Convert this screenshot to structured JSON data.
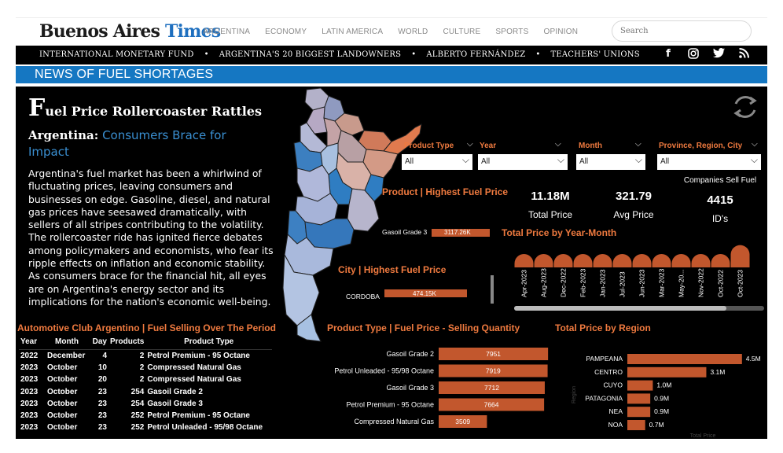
{
  "site": {
    "logo_part1": "Buenos Aires",
    "logo_part2": "Times",
    "nav": [
      "ARGENTINA",
      "ECONOMY",
      "LATIN AMERICA",
      "WORLD",
      "CULTURE",
      "SPORTS",
      "OPINION"
    ],
    "search_placeholder": "Search",
    "topics": [
      "INTERNATIONAL MONETARY FUND",
      "ARGENTINA'S 20 BIGGEST LANDOWNERS",
      "ALBERTO FERNÁNDEZ",
      "TEACHERS' UNIONS"
    ],
    "social_icons": [
      "facebook-icon",
      "instagram-icon",
      "twitter-icon",
      "rss-icon"
    ],
    "section_title": "NEWS OF FUEL SHORTAGES"
  },
  "article": {
    "title_cap": "F",
    "title_rest": "uel Price Rollercoaster Rattles",
    "subtitle_lead": "Argentina:",
    "subtitle_rest": "Consumers Brace for Impact",
    "body": "Argentina's fuel market has been a whirlwind of fluctuating prices, leaving consumers and businesses on edge. Gasoline, diesel, and natural gas prices have seesawed dramatically, with sellers of all stripes contributing to the volatility. The rollercoaster ride has ignited fierce debates among policymakers and economists, who fear its ripple effects on inflation and economic stability. As consumers brace for the financial hit, all eyes are on Argentina's energy sector and its implications for the nation's economic well-being."
  },
  "table": {
    "title": "Automotive Club Argentino | Fuel Selling Over The Period",
    "headers": [
      "Year",
      "Month",
      "Day",
      "Products",
      "Product Type"
    ],
    "rows": [
      [
        "2022",
        "December",
        "4",
        "2",
        "Petrol Premium - 95 Octane"
      ],
      [
        "2023",
        "October",
        "10",
        "2",
        "Compressed Natural Gas"
      ],
      [
        "2023",
        "October",
        "20",
        "2",
        "Compressed Natural Gas"
      ],
      [
        "2023",
        "October",
        "23",
        "254",
        "Gasoil Grade 2"
      ],
      [
        "2023",
        "October",
        "23",
        "254",
        "Gasoil Grade 3"
      ],
      [
        "2023",
        "October",
        "23",
        "252",
        "Petrol Premium - 95 Octane"
      ],
      [
        "2023",
        "October",
        "23",
        "252",
        "Petrol Unleaded - 95/98 Octane"
      ]
    ]
  },
  "slicers": [
    {
      "label": "Product Type",
      "value": "All"
    },
    {
      "label": "Year",
      "value": "All"
    },
    {
      "label": "Month",
      "value": "All"
    },
    {
      "label": "Province, Region, City",
      "value": "All"
    }
  ],
  "cards": {
    "total_price": "11.18M",
    "total_price_label": "Total Price",
    "avg_price": "321.79",
    "avg_price_label": "Avg Price",
    "companies_title": "Companies Sell Fuel",
    "ids": "4415",
    "ids_label": "ID's"
  },
  "product_highest": {
    "title": "Product | Highest Fuel Price",
    "label": "Gasoil Grade 3",
    "value_label": "3117.26K"
  },
  "city_highest": {
    "title": "City | Highest Fuel Price",
    "label": "CORDOBA",
    "value_label": "474.15K"
  },
  "colors": {
    "accent_orange": "#ef7a3f",
    "bar": "#c2572d",
    "brand_blue": "#1577c2",
    "map_blue": "#2f7dc2"
  },
  "chart_data": [
    {
      "type": "bar",
      "title": "Total Price by Year-Month",
      "categories": [
        "Apr-2023",
        "Aug-2023",
        "Dec-2022",
        "Feb-2023",
        "Jan-2023",
        "Jul-2023",
        "Jun-2023",
        "Mar-2023",
        "May-20...",
        "Nov-2022",
        "Oct-2022",
        "Oct-2023"
      ],
      "values": [
        0.3,
        0.3,
        0.3,
        0.3,
        0.3,
        0.3,
        0.3,
        0.3,
        0.3,
        0.3,
        0.3,
        0.5
      ]
    },
    {
      "type": "bar",
      "title": "Product Type | Fuel Price - Selling Quantity",
      "categories": [
        "Gasoil Grade 2",
        "Petrol Unleaded - 95/98 Octane",
        "Gasoil Grade 3",
        "Petrol Premium - 95 Octane",
        "Compressed Natural Gas"
      ],
      "values": [
        7951,
        7919,
        7712,
        7664,
        3509
      ]
    },
    {
      "type": "bar",
      "title": "Total Price by Region",
      "xlabel": "Total Price",
      "ylabel": "Region",
      "categories": [
        "PAMPEANA",
        "CENTRO",
        "CUYO",
        "PATAGONIA",
        "NEA",
        "NOA"
      ],
      "values": [
        4.5,
        3.1,
        1.0,
        0.9,
        0.9,
        0.7
      ],
      "value_labels": [
        "4.5M",
        "3.1M",
        "1.0M",
        "0.9M",
        "0.9M",
        "0.7M"
      ]
    }
  ]
}
